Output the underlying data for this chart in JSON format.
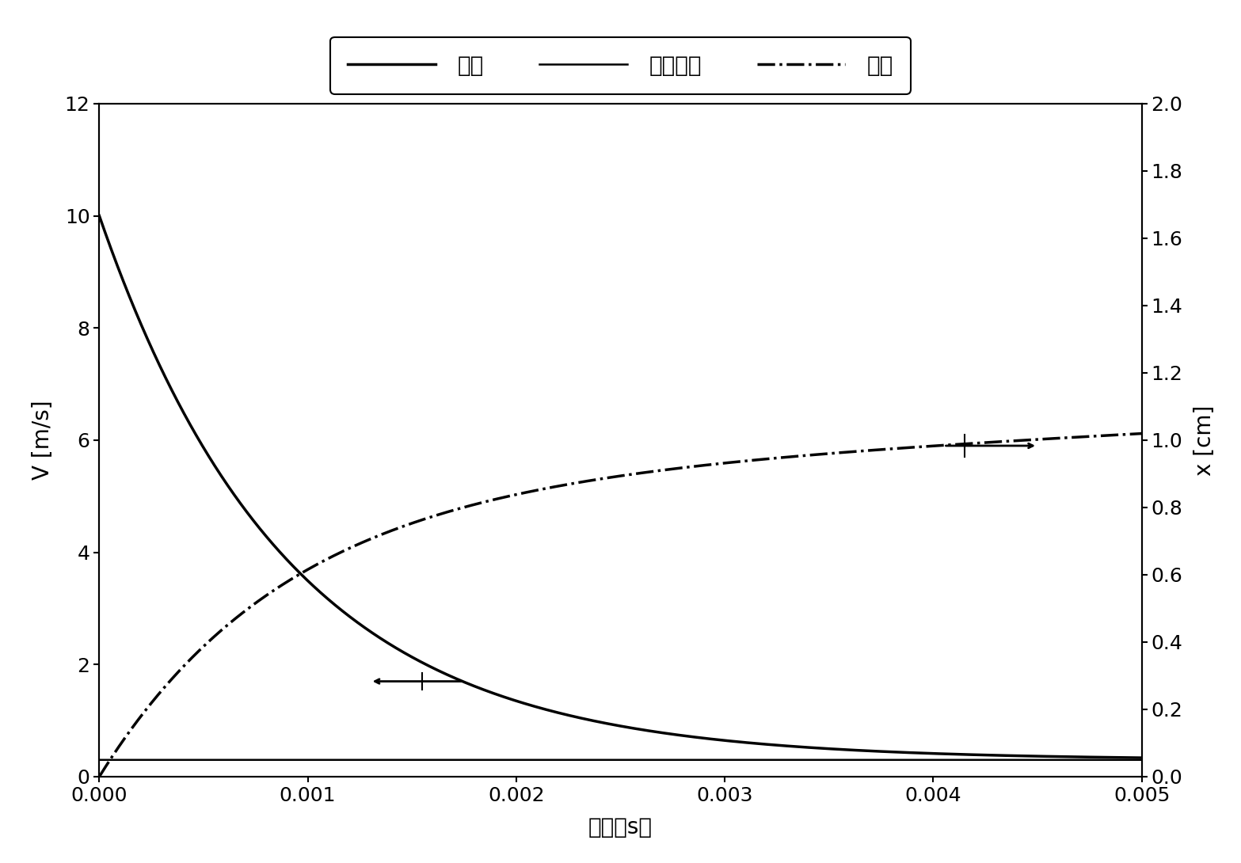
{
  "title": "",
  "xlabel": "时间（s）",
  "ylabel_left": "V [m/s]",
  "ylabel_right": "x [cm]",
  "xlim": [
    0,
    0.005
  ],
  "ylim_left": [
    0,
    12
  ],
  "ylim_right": [
    0,
    2
  ],
  "xticks": [
    0,
    0.001,
    0.002,
    0.003,
    0.004,
    0.005
  ],
  "yticks_left": [
    0,
    2,
    4,
    6,
    8,
    10,
    12
  ],
  "yticks_right": [
    0,
    0.2,
    0.4,
    0.6,
    0.8,
    1.0,
    1.2,
    1.4,
    1.6,
    1.8,
    2.0
  ],
  "legend_labels": [
    "速度",
    "终了速度",
    "距离"
  ],
  "v0": 10.0,
  "v_terminal": 0.3,
  "tau": 0.0009,
  "background_color": "#ffffff",
  "line_color": "#000000",
  "arrow_color": "#000000",
  "fontsize_label": 20,
  "fontsize_tick": 18,
  "fontsize_legend": 20
}
